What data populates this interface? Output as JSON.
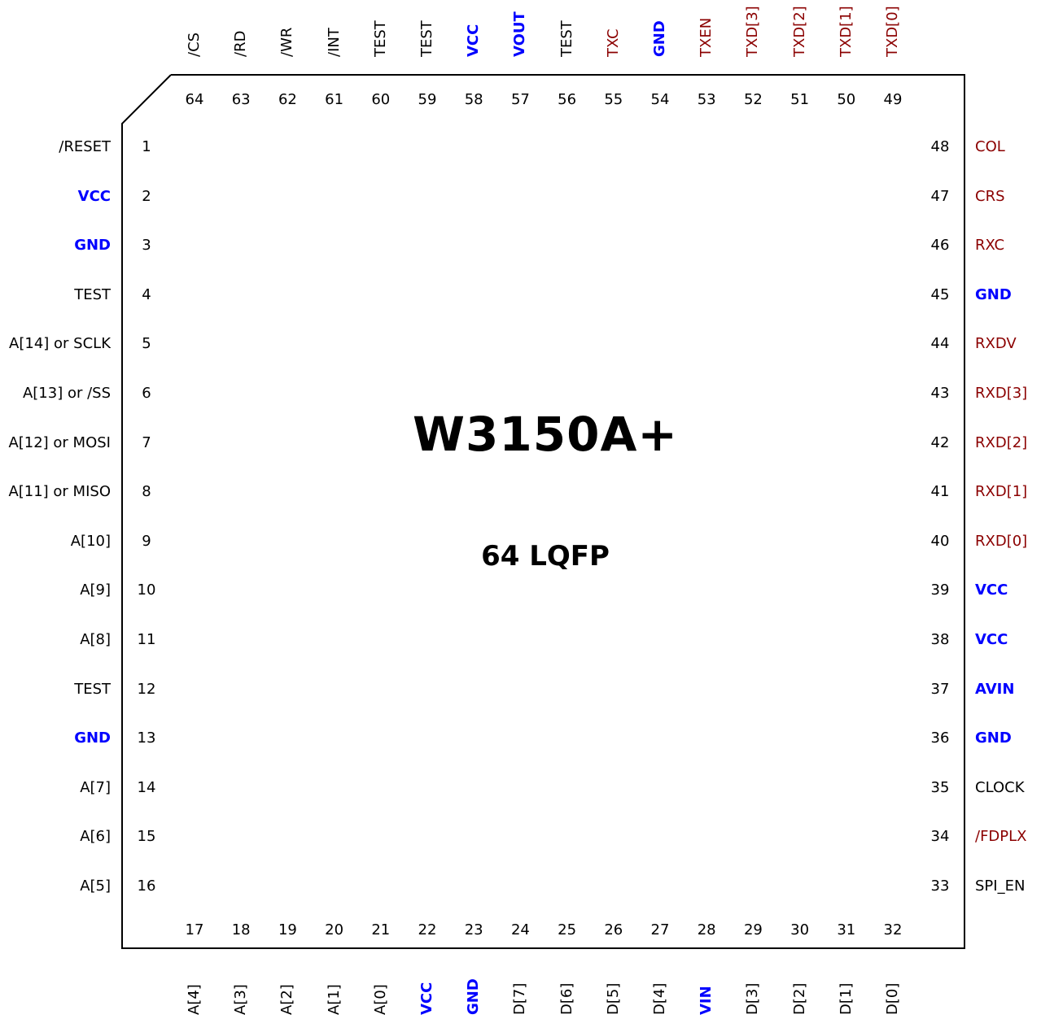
{
  "chip": {
    "name": "W3150A+",
    "package": "64 LQFP"
  },
  "colors": {
    "normal": "#000000",
    "power": "#0000ff",
    "net": "#8b0000"
  },
  "pins": {
    "left": [
      {
        "num": "1",
        "name": "/RESET",
        "kind": "normal"
      },
      {
        "num": "2",
        "name": "VCC",
        "kind": "power"
      },
      {
        "num": "3",
        "name": "GND",
        "kind": "power"
      },
      {
        "num": "4",
        "name": "TEST",
        "kind": "normal"
      },
      {
        "num": "5",
        "name": "A[14] or SCLK",
        "kind": "normal"
      },
      {
        "num": "6",
        "name": "A[13] or /SS",
        "kind": "normal"
      },
      {
        "num": "7",
        "name": "A[12] or MOSI",
        "kind": "normal"
      },
      {
        "num": "8",
        "name": "A[11] or MISO",
        "kind": "normal"
      },
      {
        "num": "9",
        "name": "A[10]",
        "kind": "normal"
      },
      {
        "num": "10",
        "name": "A[9]",
        "kind": "normal"
      },
      {
        "num": "11",
        "name": "A[8]",
        "kind": "normal"
      },
      {
        "num": "12",
        "name": "TEST",
        "kind": "normal"
      },
      {
        "num": "13",
        "name": "GND",
        "kind": "power"
      },
      {
        "num": "14",
        "name": "A[7]",
        "kind": "normal"
      },
      {
        "num": "15",
        "name": "A[6]",
        "kind": "normal"
      },
      {
        "num": "16",
        "name": "A[5]",
        "kind": "normal"
      }
    ],
    "bottom": [
      {
        "num": "17",
        "name": "A[4]",
        "kind": "normal"
      },
      {
        "num": "18",
        "name": "A[3]",
        "kind": "normal"
      },
      {
        "num": "19",
        "name": "A[2]",
        "kind": "normal"
      },
      {
        "num": "20",
        "name": "A[1]",
        "kind": "normal"
      },
      {
        "num": "21",
        "name": "A[0]",
        "kind": "normal"
      },
      {
        "num": "22",
        "name": "VCC",
        "kind": "power"
      },
      {
        "num": "23",
        "name": "GND",
        "kind": "power"
      },
      {
        "num": "24",
        "name": "D[7]",
        "kind": "normal"
      },
      {
        "num": "25",
        "name": "D[6]",
        "kind": "normal"
      },
      {
        "num": "26",
        "name": "D[5]",
        "kind": "normal"
      },
      {
        "num": "27",
        "name": "D[4]",
        "kind": "normal"
      },
      {
        "num": "28",
        "name": "VIN",
        "kind": "power"
      },
      {
        "num": "29",
        "name": "D[3]",
        "kind": "normal"
      },
      {
        "num": "30",
        "name": "D[2]",
        "kind": "normal"
      },
      {
        "num": "31",
        "name": "D[1]",
        "kind": "normal"
      },
      {
        "num": "32",
        "name": "D[0]",
        "kind": "normal"
      }
    ],
    "right": [
      {
        "num": "33",
        "name": "SPI_EN",
        "kind": "normal"
      },
      {
        "num": "34",
        "name": "/FDPLX",
        "kind": "net"
      },
      {
        "num": "35",
        "name": "CLOCK",
        "kind": "normal"
      },
      {
        "num": "36",
        "name": "GND",
        "kind": "power"
      },
      {
        "num": "37",
        "name": "AVIN",
        "kind": "power"
      },
      {
        "num": "38",
        "name": "VCC",
        "kind": "power"
      },
      {
        "num": "39",
        "name": "VCC",
        "kind": "power"
      },
      {
        "num": "40",
        "name": "RXD[0]",
        "kind": "net"
      },
      {
        "num": "41",
        "name": "RXD[1]",
        "kind": "net"
      },
      {
        "num": "42",
        "name": "RXD[2]",
        "kind": "net"
      },
      {
        "num": "43",
        "name": "RXD[3]",
        "kind": "net"
      },
      {
        "num": "44",
        "name": "RXDV",
        "kind": "net"
      },
      {
        "num": "45",
        "name": "GND",
        "kind": "power"
      },
      {
        "num": "46",
        "name": "RXC",
        "kind": "net"
      },
      {
        "num": "47",
        "name": "CRS",
        "kind": "net"
      },
      {
        "num": "48",
        "name": "COL",
        "kind": "net"
      }
    ],
    "top": [
      {
        "num": "49",
        "name": "TXD[0]",
        "kind": "net"
      },
      {
        "num": "50",
        "name": "TXD[1]",
        "kind": "net"
      },
      {
        "num": "51",
        "name": "TXD[2]",
        "kind": "net"
      },
      {
        "num": "52",
        "name": "TXD[3]",
        "kind": "net"
      },
      {
        "num": "53",
        "name": "TXEN",
        "kind": "net"
      },
      {
        "num": "54",
        "name": "GND",
        "kind": "power"
      },
      {
        "num": "55",
        "name": "TXC",
        "kind": "net"
      },
      {
        "num": "56",
        "name": "TEST",
        "kind": "normal"
      },
      {
        "num": "57",
        "name": "VOUT",
        "kind": "power"
      },
      {
        "num": "58",
        "name": "VCC",
        "kind": "power"
      },
      {
        "num": "59",
        "name": "TEST",
        "kind": "normal"
      },
      {
        "num": "60",
        "name": "TEST",
        "kind": "normal"
      },
      {
        "num": "61",
        "name": "/INT",
        "kind": "normal"
      },
      {
        "num": "62",
        "name": "/WR",
        "kind": "normal"
      },
      {
        "num": "63",
        "name": "/RD",
        "kind": "normal"
      },
      {
        "num": "64",
        "name": "/CS",
        "kind": "normal"
      }
    ]
  }
}
